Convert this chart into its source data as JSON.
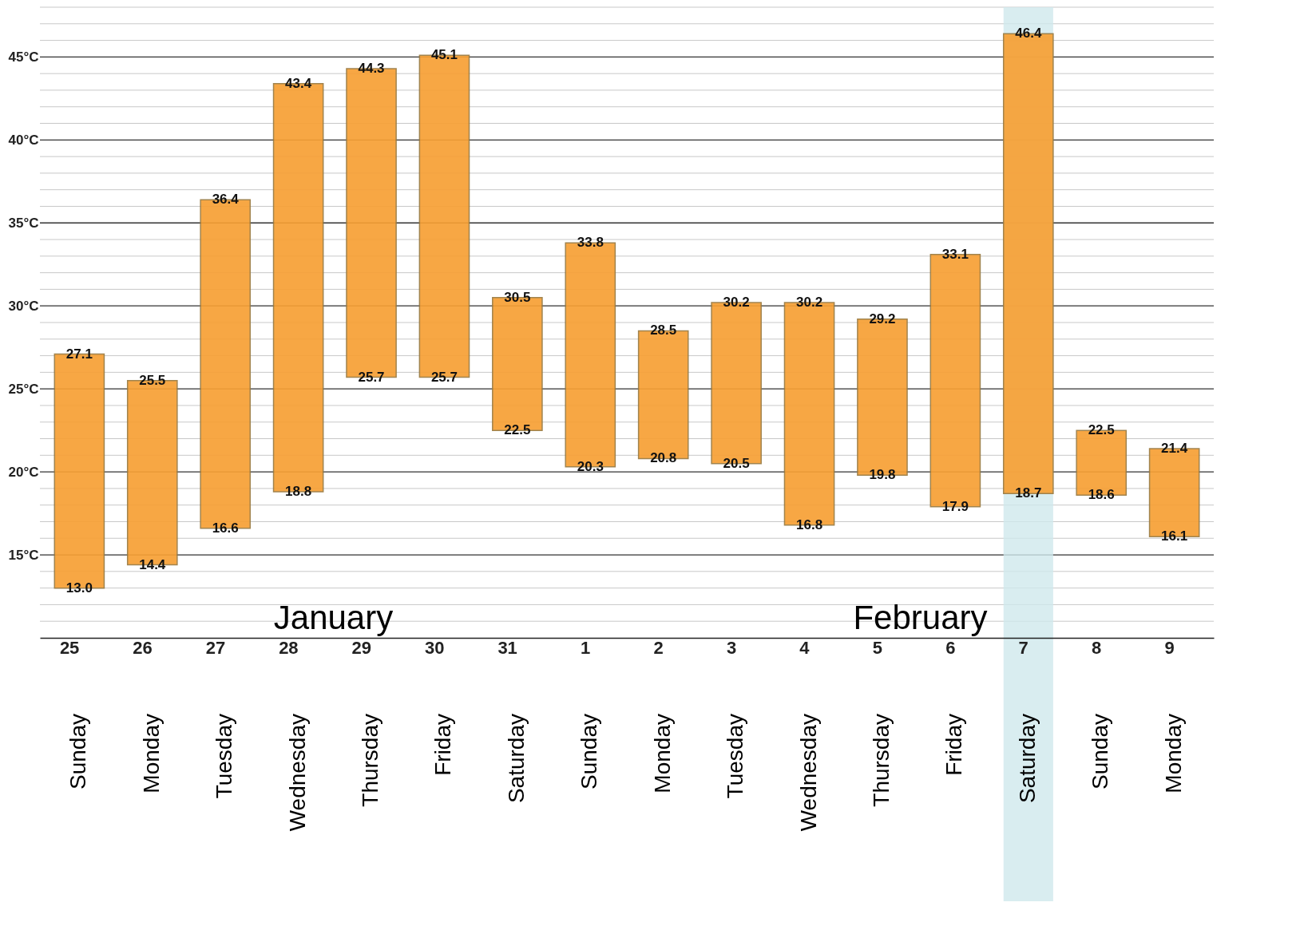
{
  "chart_data": {
    "type": "bar",
    "categories": [
      "25",
      "26",
      "27",
      "28",
      "29",
      "30",
      "31",
      "1",
      "2",
      "3",
      "4",
      "5",
      "6",
      "7",
      "8",
      "9"
    ],
    "series": [
      {
        "color": "#f7a035",
        "base": [
          13.0,
          14.4,
          16.6,
          18.8,
          25.7,
          25.7,
          22.5,
          20.3,
          20.8,
          20.5,
          16.8,
          19.8,
          17.9,
          18.7,
          18.6,
          16.1
        ],
        "values": [
          14.1,
          11.1,
          19.8,
          24.6,
          18.6,
          19.4,
          8.0,
          13.5,
          7.7,
          9.7,
          13.4,
          9.4,
          15.2,
          27.7,
          3.9,
          5.3
        ]
      }
    ],
    "ylim": [
      10,
      48
    ],
    "yticks": [
      {
        "value": 11,
        "label": null
      },
      {
        "value": 12,
        "label": null
      },
      {
        "value": 13,
        "label": null
      },
      {
        "value": 14,
        "label": null
      },
      {
        "value": 15,
        "label": "15°C"
      },
      {
        "value": 16,
        "label": null
      },
      {
        "value": 17,
        "label": null
      },
      {
        "value": 18,
        "label": null
      },
      {
        "value": 19,
        "label": null
      },
      {
        "value": 20,
        "label": "20°C"
      },
      {
        "value": 21,
        "label": null
      },
      {
        "value": 22,
        "label": null
      },
      {
        "value": 23,
        "label": null
      },
      {
        "value": 24,
        "label": null
      },
      {
        "value": 25,
        "label": "25°C"
      },
      {
        "value": 26,
        "label": null
      },
      {
        "value": 27,
        "label": null
      },
      {
        "value": 28,
        "label": null
      },
      {
        "value": 29,
        "label": null
      },
      {
        "value": 30,
        "label": "30°C"
      },
      {
        "value": 31,
        "label": null
      },
      {
        "value": 32,
        "label": null
      },
      {
        "value": 33,
        "label": null
      },
      {
        "value": 34,
        "label": null
      },
      {
        "value": 35,
        "label": "35°C"
      },
      {
        "value": 36,
        "label": null
      },
      {
        "value": 37,
        "label": null
      },
      {
        "value": 38,
        "label": null
      },
      {
        "value": 39,
        "label": null
      },
      {
        "value": 40,
        "label": "40°C"
      },
      {
        "value": 41,
        "label": null
      },
      {
        "value": 42,
        "label": null
      },
      {
        "value": 43,
        "label": null
      },
      {
        "value": 44,
        "label": null
      },
      {
        "value": 45,
        "label": "45°C"
      },
      {
        "value": 46,
        "label": null
      },
      {
        "value": 47,
        "label": null
      },
      {
        "value": 48,
        "label": null
      }
    ],
    "grid": "y",
    "bands": [
      {
        "axis": "x",
        "from": "7",
        "to": "7",
        "color": "#cfe8ec"
      }
    ],
    "annotations": [
      "January",
      "February",
      "Sunday",
      "Monday",
      "Tuesday",
      "Wednesday",
      "Thursday",
      "Friday",
      "Saturday",
      "Sunday",
      "Monday",
      "Tuesday",
      "Wednesday",
      "Thursday",
      "Friday",
      "Saturday",
      "Sunday",
      "Monday",
      {
        "text": "27.1",
        "x": "25",
        "y": 27.1
      },
      {
        "text": "13.0",
        "x": "25",
        "y": 13.0
      },
      {
        "text": "25.5",
        "x": "26",
        "y": 25.5
      },
      {
        "text": "14.4",
        "x": "26",
        "y": 14.4
      },
      {
        "text": "36.4",
        "x": "27",
        "y": 36.4
      },
      {
        "text": "16.6",
        "x": "27",
        "y": 16.6
      },
      {
        "text": "43.4",
        "x": "28",
        "y": 43.4
      },
      {
        "text": "18.8",
        "x": "28",
        "y": 18.8
      },
      {
        "text": "44.3",
        "x": "29",
        "y": 44.3
      },
      {
        "text": "25.7",
        "x": "29",
        "y": 25.7
      },
      {
        "text": "45.1",
        "x": "30",
        "y": 45.1
      },
      {
        "text": "25.7",
        "x": "30",
        "y": 25.7
      },
      {
        "text": "30.5",
        "x": "31",
        "y": 30.5
      },
      {
        "text": "22.5",
        "x": "31",
        "y": 22.5
      },
      {
        "text": "33.8",
        "x": "1",
        "y": 33.8
      },
      {
        "text": "20.3",
        "x": "1",
        "y": 20.3
      },
      {
        "text": "28.5",
        "x": "2",
        "y": 28.5
      },
      {
        "text": "20.8",
        "x": "2",
        "y": 20.8
      },
      {
        "text": "30.2",
        "x": "3",
        "y": 30.2
      },
      {
        "text": "20.5",
        "x": "3",
        "y": 20.5
      },
      {
        "text": "30.2",
        "x": "4",
        "y": 30.2
      },
      {
        "text": "16.8",
        "x": "4",
        "y": 16.8
      },
      {
        "text": "29.2",
        "x": "5",
        "y": 29.2
      },
      {
        "text": "19.8",
        "x": "5",
        "y": 19.8
      },
      {
        "text": "33.1",
        "x": "6",
        "y": 33.1
      },
      {
        "text": "17.9",
        "x": "6",
        "y": 17.9
      },
      {
        "text": "46.4",
        "x": "7",
        "y": 46.4
      },
      {
        "text": "18.7",
        "x": "7",
        "y": 18.7
      },
      {
        "text": "22.5",
        "x": "8",
        "y": 22.5
      },
      {
        "text": "18.6",
        "x": "8",
        "y": 18.6
      },
      {
        "text": "21.4",
        "x": "9",
        "y": 21.4
      },
      {
        "text": "16.1",
        "x": "9",
        "y": 16.1
      }
    ]
  }
}
